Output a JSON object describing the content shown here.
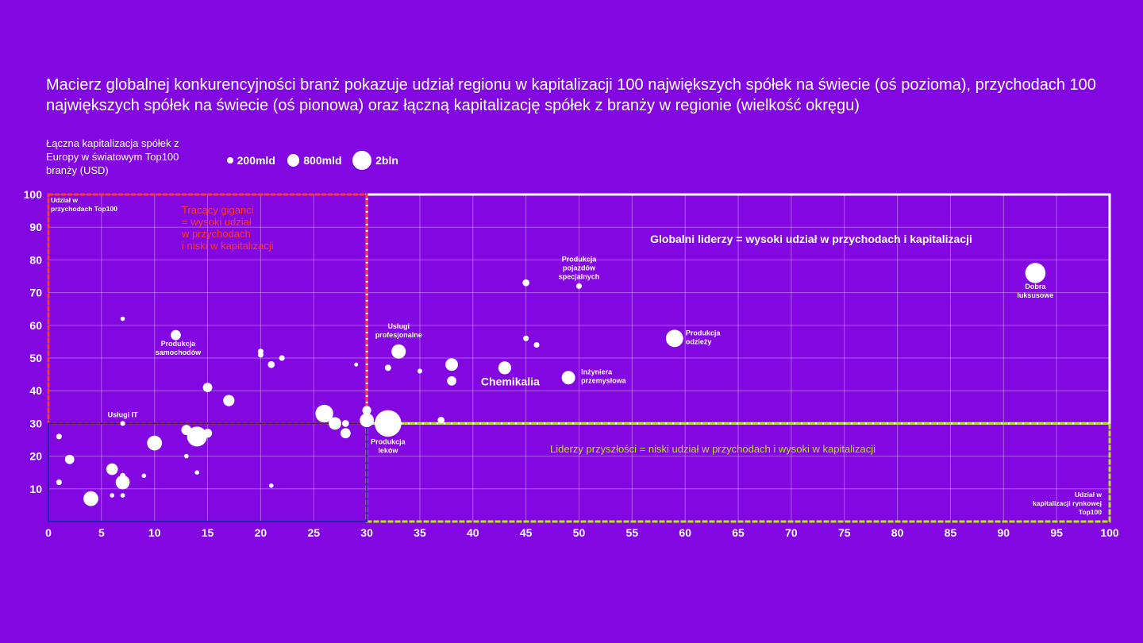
{
  "title": "Macierz globalnej konkurencyjności branż pokazuje udział regionu w kapitalizacji 100 największych spółek na świecie (oś pozioma), przychodach 100 największych spółek na świecie (oś pionowa) oraz łączną kapitalizację spółek z branży w regionie (wielkość okręgu)",
  "legend": {
    "title": "Łączna kapitalizacja spółek z Europy w światowym Top100 branży (USD)",
    "items": [
      {
        "label": "200mld",
        "value_usd_bn": 200
      },
      {
        "label": "800mld",
        "value_usd_bn": 800
      },
      {
        "label": "2bln",
        "value_usd_bn": 2000
      }
    ]
  },
  "colors": {
    "background": "#8307e0",
    "bubble": "#ffffff",
    "grid": "#ffffff",
    "leaders_box": "#ffffff",
    "giants_box": "#ff3b1f",
    "future_box": "#b5e61d"
  },
  "chart_data": {
    "type": "scatter",
    "xlabel": "Udział w kapitalizacji rynkowej Top100",
    "ylabel": "Udział w przychodach Top100",
    "xlim": [
      0,
      100
    ],
    "ylim": [
      0,
      100
    ],
    "xticks": [
      0,
      5,
      10,
      15,
      20,
      25,
      30,
      35,
      40,
      45,
      50,
      55,
      60,
      65,
      70,
      75,
      80,
      85,
      90,
      95,
      100
    ],
    "yticks": [
      10,
      20,
      30,
      40,
      50,
      60,
      70,
      80,
      90,
      100
    ],
    "grid": true,
    "quadrants": [
      {
        "name": "Globalni liderzy = wysoki udział w przychodach i kapitalizacji",
        "x_range": [
          30,
          100
        ],
        "y_range": [
          30,
          100
        ],
        "color": "#ffffff"
      },
      {
        "name": "Tracący giganci = wysoki udział w przychodach i niski w kapitalizacji",
        "x_range": [
          0,
          30
        ],
        "y_range": [
          30,
          100
        ],
        "color": "#ff3b1f"
      },
      {
        "name": "Liderzy przyszłości = niski udział w przychodach i wysoki w kapitalizacji",
        "x_range": [
          30,
          100
        ],
        "y_range": [
          0,
          30
        ],
        "color": "#b5e61d"
      }
    ],
    "points": [
      {
        "x": 93,
        "y": 76,
        "size": 520,
        "label": "Dobra luksusowe"
      },
      {
        "x": 59,
        "y": 56,
        "size": 380,
        "label": "Produkcja odzieży"
      },
      {
        "x": 49,
        "y": 44,
        "size": 230,
        "label": "Inżyniera przemysłowa"
      },
      {
        "x": 43,
        "y": 47,
        "size": 210,
        "label": "Chemikalia"
      },
      {
        "x": 50,
        "y": 72,
        "size": 40,
        "label": "Produkcja pojazdów specjalnych"
      },
      {
        "x": 33,
        "y": 52,
        "size": 260,
        "label": "Usługi profesjonalne"
      },
      {
        "x": 32,
        "y": 30,
        "size": 900,
        "label": "Produkcja leków"
      },
      {
        "x": 12,
        "y": 57,
        "size": 130,
        "label": "Produkcja samochodów"
      },
      {
        "x": 7,
        "y": 30,
        "size": 30,
        "label": "Usługi IT"
      },
      {
        "x": 45,
        "y": 73,
        "size": 60,
        "label": ""
      },
      {
        "x": 45,
        "y": 56,
        "size": 40,
        "label": ""
      },
      {
        "x": 46,
        "y": 54,
        "size": 40,
        "label": ""
      },
      {
        "x": 38,
        "y": 48,
        "size": 200,
        "label": ""
      },
      {
        "x": 38,
        "y": 43,
        "size": 110,
        "label": ""
      },
      {
        "x": 35,
        "y": 46,
        "size": 30,
        "label": ""
      },
      {
        "x": 32,
        "y": 47,
        "size": 50,
        "label": ""
      },
      {
        "x": 37,
        "y": 31,
        "size": 60,
        "label": ""
      },
      {
        "x": 30,
        "y": 34,
        "size": 100,
        "label": ""
      },
      {
        "x": 30,
        "y": 31,
        "size": 250,
        "label": ""
      },
      {
        "x": 29,
        "y": 48,
        "size": 20,
        "label": ""
      },
      {
        "x": 26,
        "y": 33,
        "size": 400,
        "label": ""
      },
      {
        "x": 27,
        "y": 30,
        "size": 200,
        "label": ""
      },
      {
        "x": 28,
        "y": 30,
        "size": 60,
        "label": ""
      },
      {
        "x": 28,
        "y": 27,
        "size": 130,
        "label": ""
      },
      {
        "x": 22,
        "y": 50,
        "size": 40,
        "label": ""
      },
      {
        "x": 20,
        "y": 52,
        "size": 40,
        "label": ""
      },
      {
        "x": 20,
        "y": 51,
        "size": 40,
        "label": ""
      },
      {
        "x": 21,
        "y": 48,
        "size": 60,
        "label": ""
      },
      {
        "x": 21,
        "y": 11,
        "size": 25,
        "label": ""
      },
      {
        "x": 17,
        "y": 37,
        "size": 160,
        "label": ""
      },
      {
        "x": 15,
        "y": 41,
        "size": 110,
        "label": ""
      },
      {
        "x": 15,
        "y": 27,
        "size": 100,
        "label": ""
      },
      {
        "x": 14,
        "y": 26,
        "size": 500,
        "label": ""
      },
      {
        "x": 14,
        "y": 15,
        "size": 25,
        "label": ""
      },
      {
        "x": 13,
        "y": 28,
        "size": 130,
        "label": ""
      },
      {
        "x": 13,
        "y": 20,
        "size": 25,
        "label": ""
      },
      {
        "x": 10,
        "y": 24,
        "size": 280,
        "label": ""
      },
      {
        "x": 9,
        "y": 14,
        "size": 25,
        "label": ""
      },
      {
        "x": 7,
        "y": 62,
        "size": 25,
        "label": ""
      },
      {
        "x": 7,
        "y": 14,
        "size": 40,
        "label": ""
      },
      {
        "x": 7,
        "y": 12,
        "size": 250,
        "label": ""
      },
      {
        "x": 7,
        "y": 8,
        "size": 25,
        "label": ""
      },
      {
        "x": 6,
        "y": 16,
        "size": 170,
        "label": ""
      },
      {
        "x": 6,
        "y": 8,
        "size": 25,
        "label": ""
      },
      {
        "x": 4,
        "y": 7,
        "size": 280,
        "label": ""
      },
      {
        "x": 2,
        "y": 19,
        "size": 110,
        "label": ""
      },
      {
        "x": 1,
        "y": 26,
        "size": 40,
        "label": ""
      },
      {
        "x": 1,
        "y": 12,
        "size": 40,
        "label": ""
      }
    ]
  }
}
